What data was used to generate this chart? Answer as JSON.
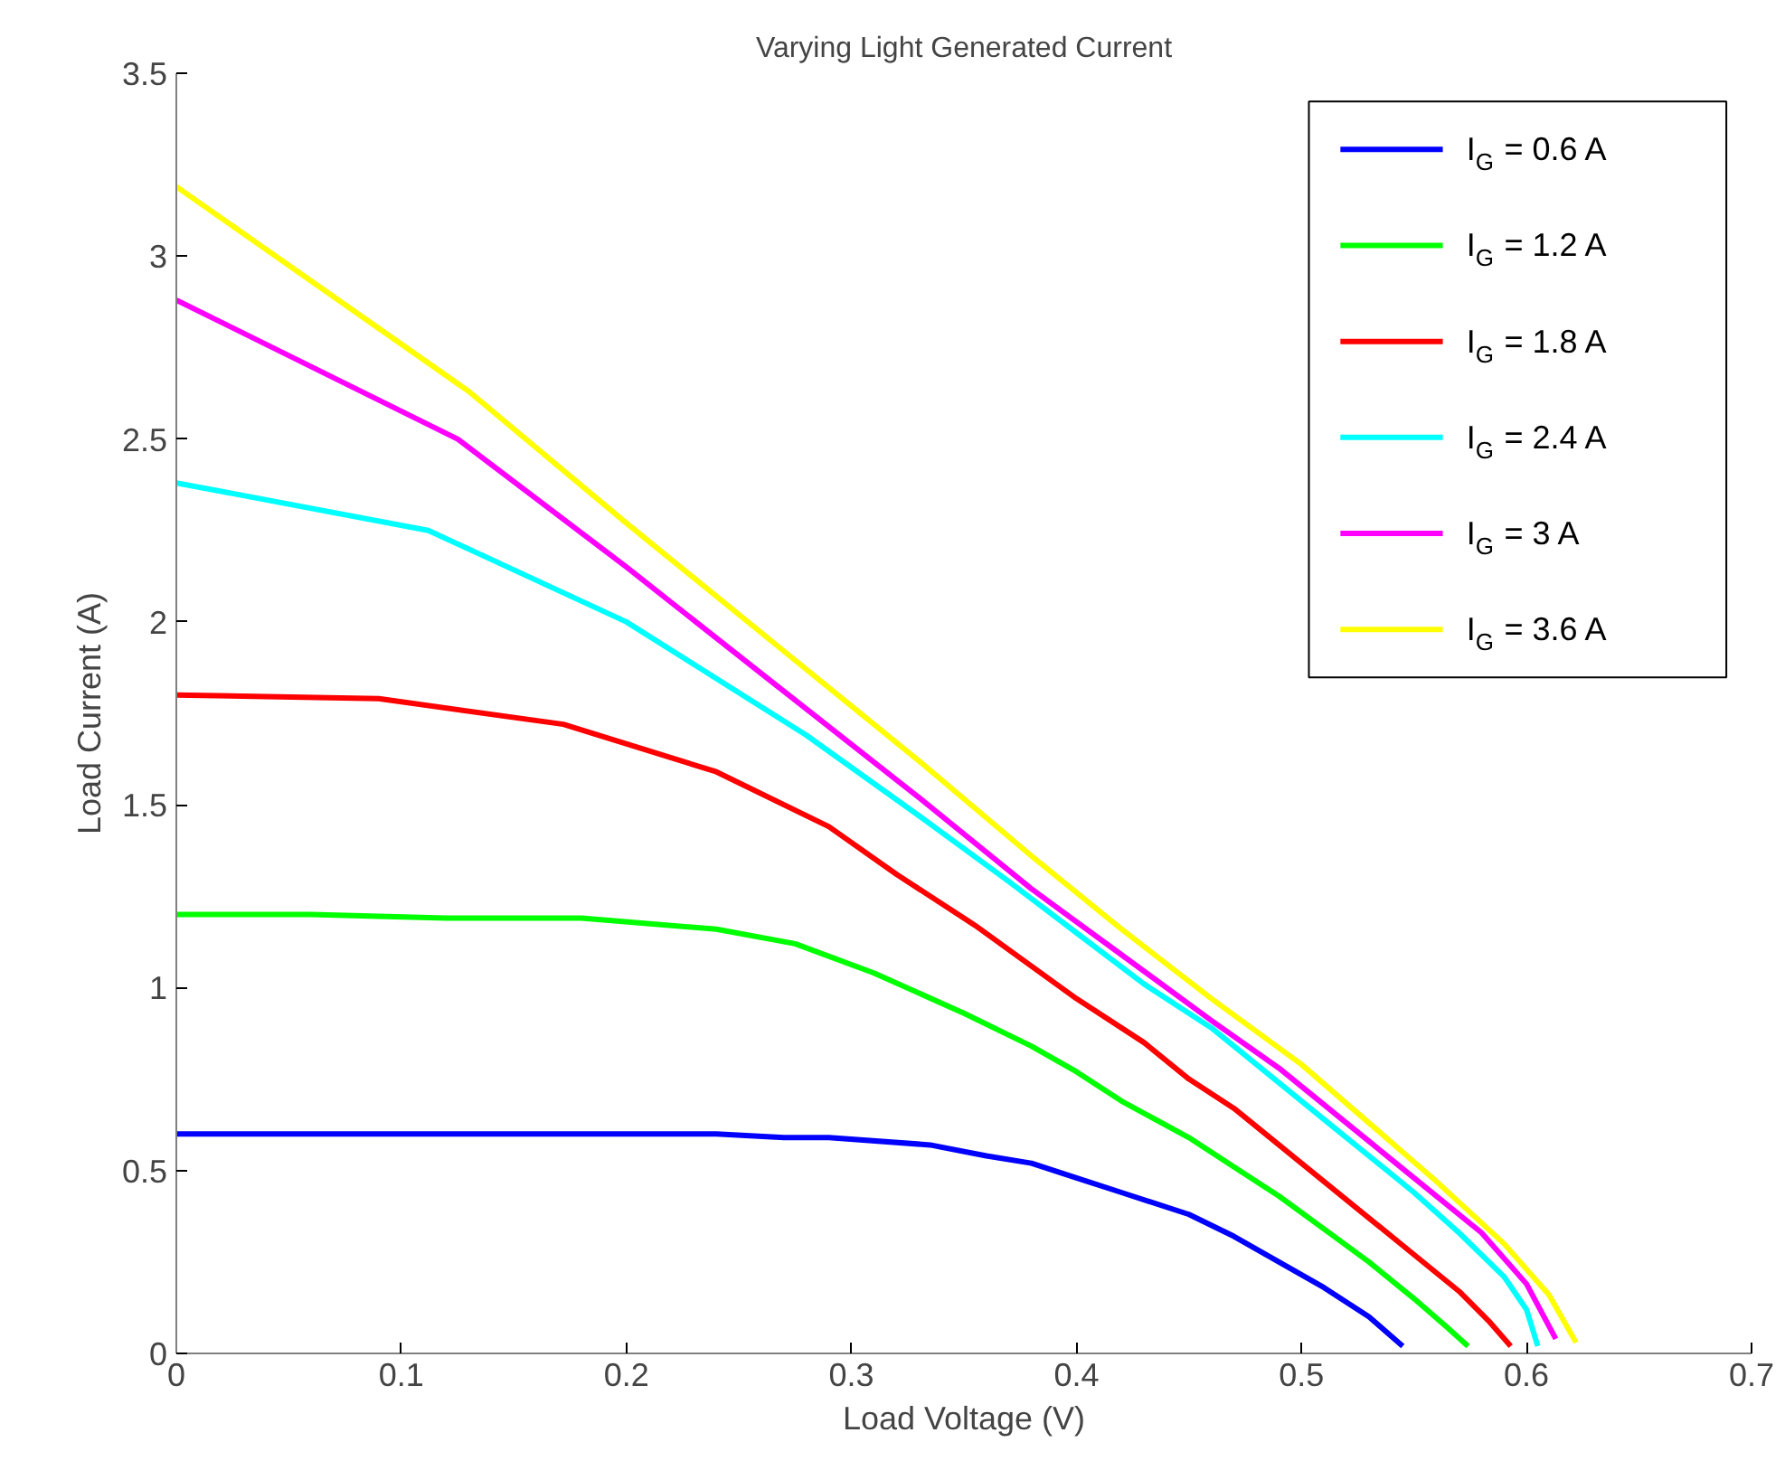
{
  "chart_data": {
    "type": "line",
    "title": "Varying Light Generated Current",
    "xlabel": "Load Voltage (V)",
    "ylabel": "Load Current (A)",
    "xlim": [
      0,
      0.7
    ],
    "xticks": [
      0,
      0.1,
      0.2,
      0.3,
      0.4,
      0.5,
      0.6,
      0.7
    ],
    "ylim": [
      0,
      3.5
    ],
    "yticks": [
      0,
      0.5,
      1,
      1.5,
      2,
      2.5,
      3,
      3.5
    ],
    "grid": false,
    "legend": "top right",
    "line_style": "solid",
    "series": [
      {
        "name": "I$_{G}$ = 0.6 A",
        "color": "#0000ff",
        "x": [
          0,
          0.24,
          0.27,
          0.29,
          0.335,
          0.36,
          0.38,
          0.4,
          0.42,
          0.45,
          0.47,
          0.49,
          0.51,
          0.53,
          0.545
        ],
        "values": [
          0.6,
          0.6,
          0.59,
          0.59,
          0.57,
          0.54,
          0.52,
          0.48,
          0.44,
          0.38,
          0.32,
          0.25,
          0.18,
          0.1,
          0.02
        ]
      },
      {
        "name": "I$_{G}$ = 1.2 A",
        "color": "#00ff00",
        "x": [
          0,
          0.06,
          0.12,
          0.18,
          0.24,
          0.275,
          0.31,
          0.35,
          0.38,
          0.4,
          0.42,
          0.45,
          0.47,
          0.49,
          0.51,
          0.53,
          0.55,
          0.565,
          0.574
        ],
        "values": [
          1.2,
          1.2,
          1.19,
          1.19,
          1.16,
          1.12,
          1.04,
          0.93,
          0.84,
          0.77,
          0.69,
          0.59,
          0.51,
          0.43,
          0.34,
          0.25,
          0.15,
          0.07,
          0.02
        ]
      },
      {
        "name": "I$_{G}$ = 1.8 A",
        "color": "#ff0000",
        "x": [
          0,
          0.09,
          0.172,
          0.24,
          0.29,
          0.32,
          0.355,
          0.4,
          0.43,
          0.45,
          0.47,
          0.49,
          0.51,
          0.53,
          0.55,
          0.57,
          0.583,
          0.593
        ],
        "values": [
          1.8,
          1.79,
          1.72,
          1.59,
          1.44,
          1.31,
          1.17,
          0.97,
          0.85,
          0.75,
          0.67,
          0.57,
          0.47,
          0.37,
          0.27,
          0.17,
          0.09,
          0.02
        ]
      },
      {
        "name": "I$_{G}$ = 2.4 A",
        "color": "#00ffff",
        "x": [
          0,
          0.112,
          0.2,
          0.28,
          0.33,
          0.37,
          0.4,
          0.43,
          0.46,
          0.49,
          0.52,
          0.55,
          0.57,
          0.59,
          0.6,
          0.605
        ],
        "values": [
          2.38,
          2.25,
          2.0,
          1.69,
          1.47,
          1.29,
          1.15,
          1.01,
          0.89,
          0.74,
          0.59,
          0.44,
          0.33,
          0.21,
          0.12,
          0.02
        ]
      },
      {
        "name": "I$_{G}$ = 3 A",
        "color": "#ff00ff",
        "x": [
          0,
          0.125,
          0.2,
          0.27,
          0.33,
          0.38,
          0.42,
          0.46,
          0.49,
          0.52,
          0.55,
          0.58,
          0.6,
          0.613
        ],
        "values": [
          2.88,
          2.5,
          2.15,
          1.81,
          1.52,
          1.27,
          1.09,
          0.91,
          0.78,
          0.63,
          0.48,
          0.33,
          0.19,
          0.04
        ]
      },
      {
        "name": "I$_{G}$ = 3.6 A",
        "color": "#ffff00",
        "x": [
          0,
          0.13,
          0.2,
          0.27,
          0.33,
          0.38,
          0.42,
          0.46,
          0.5,
          0.53,
          0.56,
          0.59,
          0.61,
          0.622
        ],
        "values": [
          3.19,
          2.63,
          2.27,
          1.92,
          1.62,
          1.36,
          1.16,
          0.97,
          0.79,
          0.63,
          0.47,
          0.3,
          0.16,
          0.03
        ]
      }
    ]
  }
}
